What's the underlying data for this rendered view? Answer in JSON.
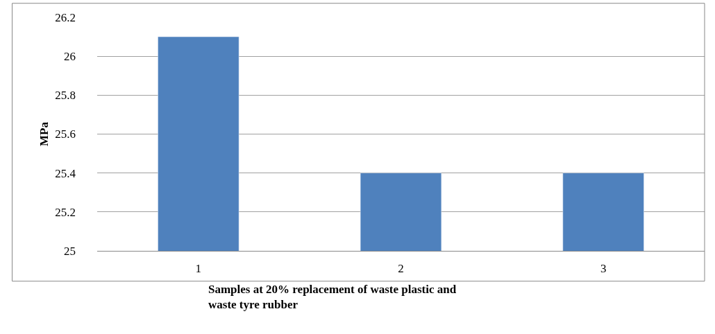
{
  "chart_data": {
    "type": "bar",
    "categories": [
      "1",
      "2",
      "3"
    ],
    "values": [
      26.1,
      25.4,
      25.4
    ],
    "color": "#4f81bd",
    "ylabel": "MPa",
    "xlabel": "Samples at 20% replacement of waste plastic and waste tyre rubber",
    "ylim": [
      25,
      26.2
    ],
    "yticks": [
      25,
      25.2,
      25.4,
      25.6,
      25.8,
      26,
      26.2
    ],
    "grid": "y",
    "legend": false
  }
}
